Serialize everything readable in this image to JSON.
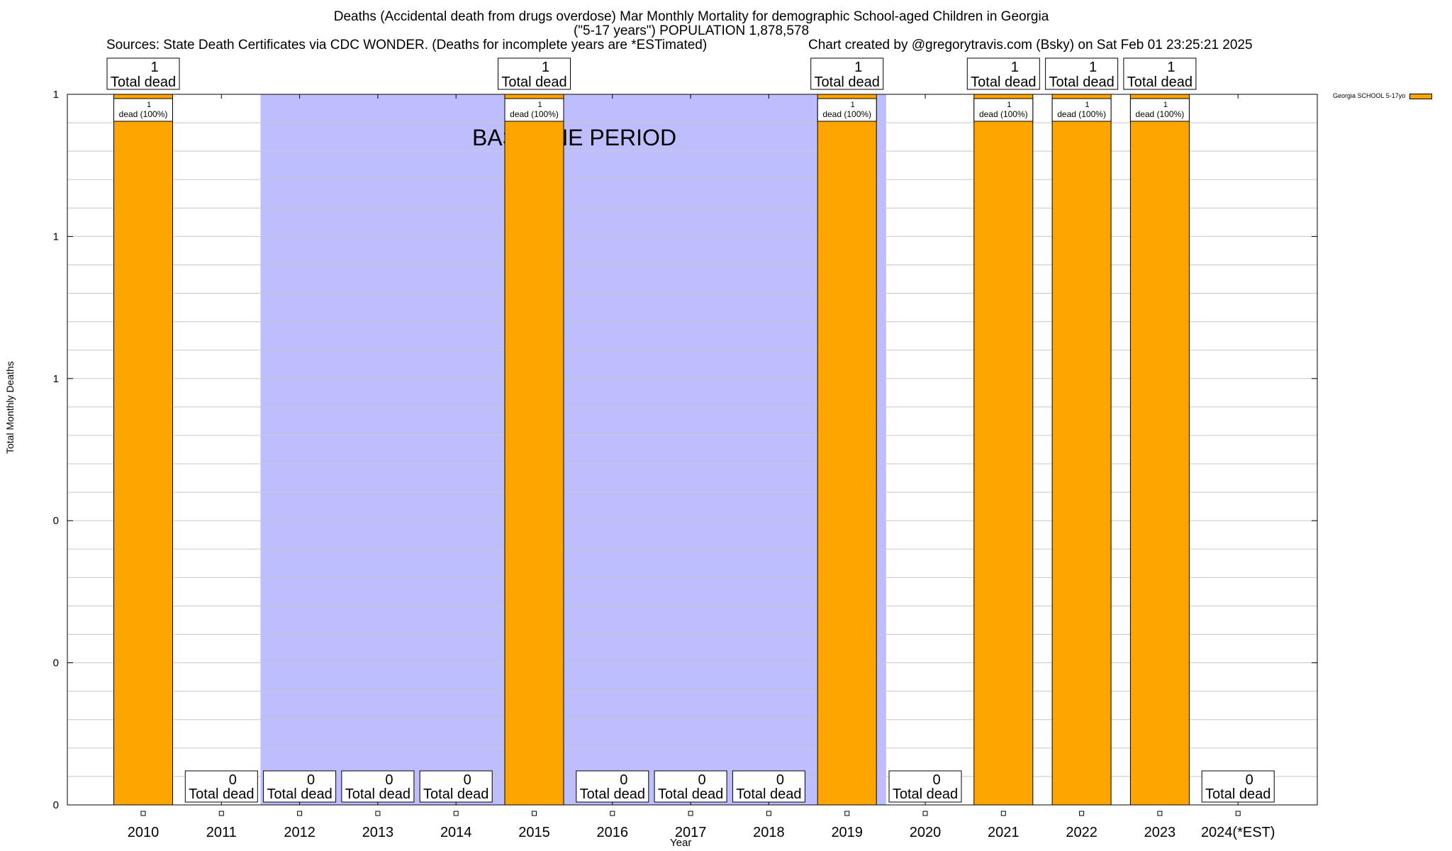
{
  "header": {
    "title_line1": "Deaths (Accidental death from drugs overdose) Mar Monthly Mortality for demographic School-aged Children in Georgia",
    "title_line2": "(\"5-17 years\") POPULATION 1,878,578",
    "sources": "Sources: State Death Certificates via CDC WONDER. (Deaths for incomplete years are *ESTimated)",
    "credit": "Chart created by @gregorytravis.com (Bsky) on Sat Feb 01 23:25:21 2025"
  },
  "chart_data": {
    "type": "bar",
    "xlabel": "Year",
    "ylabel": "Total Monthly Deaths",
    "ylim": [
      0,
      1
    ],
    "ytick_values": [
      0,
      0.2,
      0.4,
      0.6,
      0.8,
      1
    ],
    "ytick_labels": [
      "0",
      "0",
      "0",
      "1",
      "1",
      "1"
    ],
    "grid": true,
    "categories": [
      "2010",
      "2011",
      "2012",
      "2013",
      "2014",
      "2015",
      "2016",
      "2017",
      "2018",
      "2019",
      "2020",
      "2021",
      "2022",
      "2023",
      "2024(*EST)"
    ],
    "series": [
      {
        "name": "Georgia SCHOOL 5-17yo",
        "color": "#ffa500",
        "values": [
          1,
          0,
          0,
          0,
          0,
          1,
          0,
          0,
          0,
          1,
          0,
          1,
          1,
          1,
          0
        ]
      }
    ],
    "top_label_values": [
      "1",
      "0",
      "0",
      "0",
      "0",
      "1",
      "0",
      "0",
      "0",
      "1",
      "0",
      "1",
      "1",
      "1",
      "0"
    ],
    "top_label_text": "Total dead",
    "inner_label_value": "1",
    "inner_label_text": "dead (100%)",
    "baseline": {
      "label": "BASELINE PERIOD",
      "start_year": "2011.5",
      "end_year": "2019.5",
      "color": "#bebefe"
    },
    "legend": {
      "label": "Georgia SCHOOL 5-17yo",
      "position": "top-right"
    }
  }
}
